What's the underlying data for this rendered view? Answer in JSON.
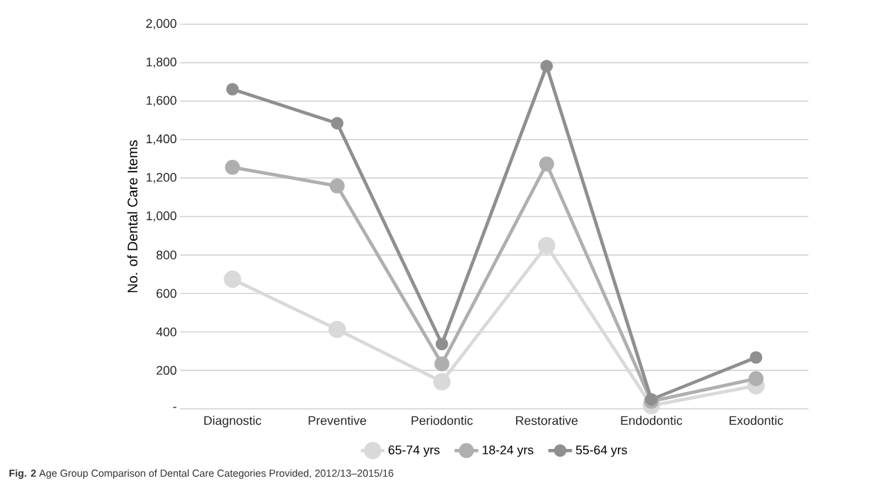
{
  "chart_data": {
    "type": "line",
    "ylabel": "No. of Dental Care Items",
    "categories": [
      "Diagnostic",
      "Preventive",
      "Periodontic",
      "Restorative",
      "Endodontic",
      "Exodontic"
    ],
    "series": [
      {
        "name": "65-74 yrs",
        "color": "#d9d9d9",
        "values": [
          674,
          413,
          141,
          849,
          17,
          120
        ]
      },
      {
        "name": "18-24 yrs",
        "color": "#afafaf",
        "values": [
          1256,
          1159,
          234,
          1273,
          39,
          157
        ]
      },
      {
        "name": "55-64 yrs",
        "color": "#8f8f8f",
        "values": [
          1662,
          1485,
          337,
          1782,
          49,
          267
        ]
      }
    ],
    "ylim": [
      0,
      2000
    ],
    "yticks": [
      {
        "value": 0,
        "label": "-"
      },
      200,
      400,
      600,
      800,
      {
        "value": 1000,
        "label": "1,000"
      },
      {
        "value": 1200,
        "label": "1,200"
      },
      {
        "value": 1400,
        "label": "1,400"
      },
      {
        "value": 1600,
        "label": "1,600"
      },
      {
        "value": 1800,
        "label": "1,800"
      },
      {
        "value": 2000,
        "label": "2,000"
      }
    ],
    "grid": "y",
    "legend": "bottom",
    "marker": "circle",
    "line_style": "solid",
    "annotations": [
      "**Fig. 2** Age Group Comparison of Dental Care Categories Provided, 2012/13–2015/16"
    ]
  }
}
